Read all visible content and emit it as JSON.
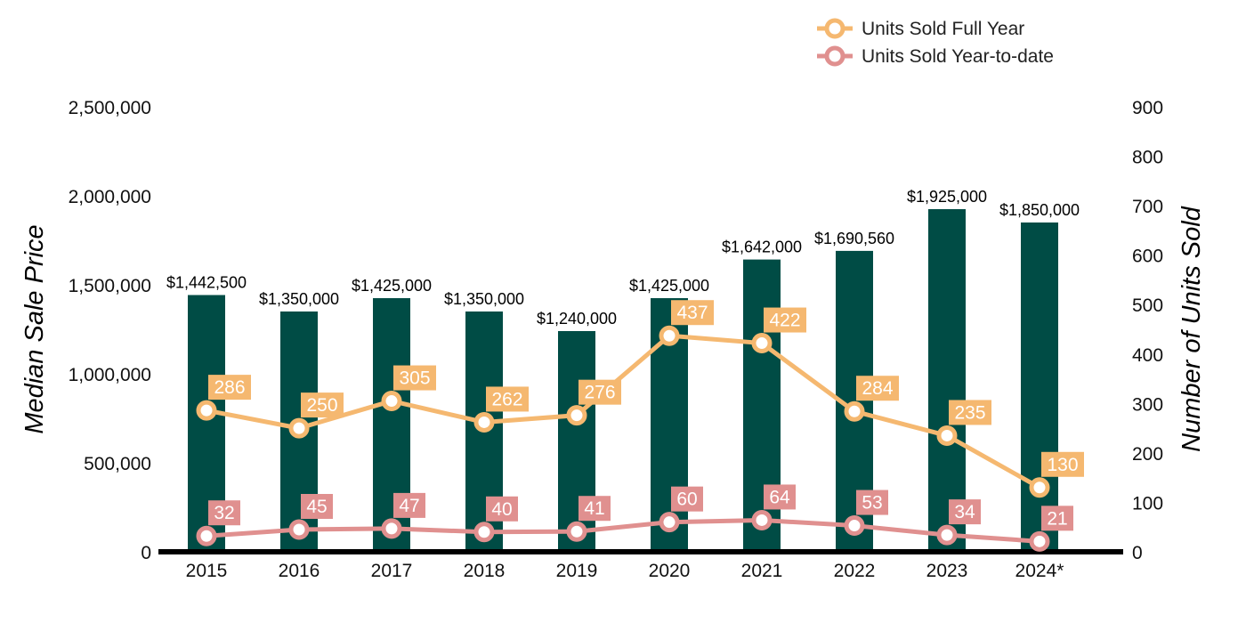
{
  "chart_data": {
    "type": "bar",
    "categories": [
      "2015",
      "2016",
      "2017",
      "2018",
      "2019",
      "2020",
      "2021",
      "2022",
      "2023",
      "2024*"
    ],
    "y_left": {
      "label": "Median Sale Price",
      "range": [
        0,
        2500000
      ],
      "ticks": [
        "0",
        "500,000",
        "1,000,000",
        "1,500,000",
        "2,000,000",
        "2,500,000"
      ]
    },
    "y_right": {
      "label": "Number of Units Sold",
      "range": [
        0,
        900
      ],
      "ticks": [
        "0",
        "100",
        "200",
        "300",
        "400",
        "500",
        "600",
        "700",
        "800",
        "900"
      ]
    },
    "bars": {
      "axis": "left",
      "values": [
        1442500,
        1350000,
        1425000,
        1350000,
        1240000,
        1425000,
        1642000,
        1690560,
        1925000,
        1850000
      ],
      "labels": [
        "$1,442,500",
        "$1,350,000",
        "$1,425,000",
        "$1,350,000",
        "$1,240,000",
        "$1,425,000",
        "$1,642,000",
        "$1,690,560",
        "$1,925,000",
        "$1,850,000"
      ],
      "color": "#004c45"
    },
    "series": [
      {
        "name": "Units Sold Full Year",
        "type": "line",
        "axis": "right",
        "color": "#f5b870",
        "values": [
          286,
          250,
          305,
          262,
          276,
          437,
          422,
          284,
          235,
          130
        ]
      },
      {
        "name": "Units Sold Year-to-date",
        "type": "line",
        "axis": "right",
        "color": "#e0908f",
        "values": [
          32,
          45,
          47,
          40,
          41,
          60,
          64,
          53,
          34,
          21
        ]
      }
    ],
    "legend": "top-right",
    "grid": false
  }
}
